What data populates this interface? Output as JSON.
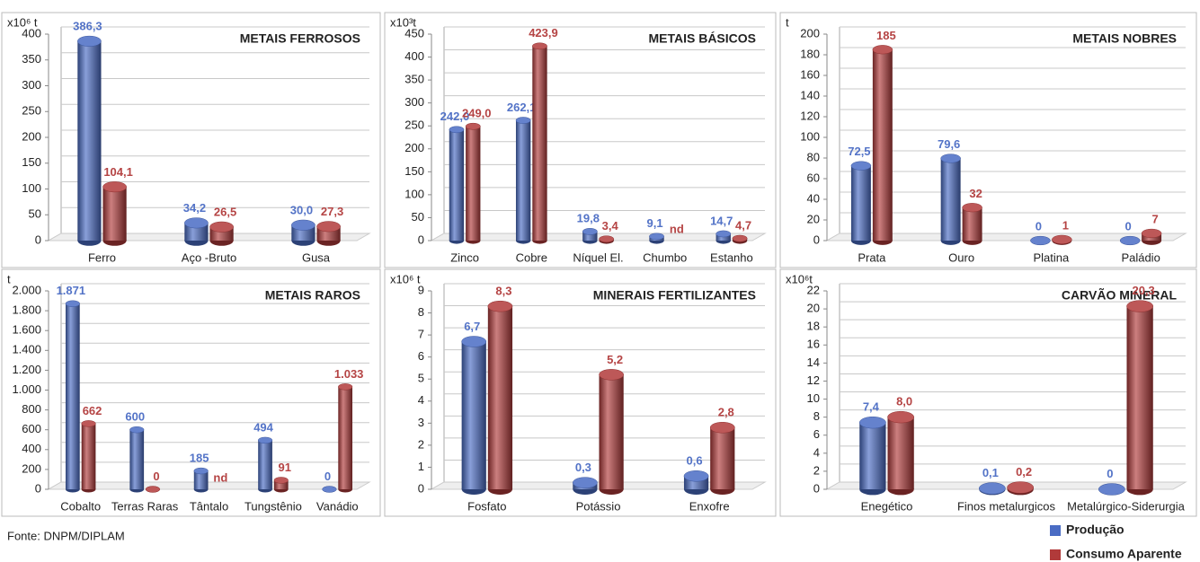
{
  "chart_data": [
    {
      "type": "bar",
      "title": "METAIS FERROSOS",
      "unit": "x10⁶ t",
      "categories": [
        "Ferro",
        "Aço -Bruto",
        "Gusa"
      ],
      "series": [
        {
          "name": "Produção",
          "color": "#4a6cc4",
          "values": [
            386.3,
            34.2,
            30.0
          ],
          "value_labels": [
            "386,3",
            "34,2",
            "30,0"
          ]
        },
        {
          "name": "Consumo Aparente",
          "color": "#b13a3a",
          "values": [
            104.1,
            26.5,
            27.3
          ],
          "value_labels": [
            "104,1",
            "26,5",
            "27,3"
          ]
        }
      ],
      "ylim": [
        0,
        400
      ],
      "yticks": [
        0,
        50,
        100,
        150,
        200,
        250,
        300,
        350,
        400
      ],
      "grid": true
    },
    {
      "type": "bar",
      "title": "METAIS BÁSICOS",
      "unit": "x10³t",
      "categories": [
        "Zinco",
        "Cobre",
        "Níquel El.",
        "Chumbo",
        "Estanho"
      ],
      "series": [
        {
          "name": "Produção",
          "color": "#4a6cc4",
          "values": [
            242.0,
            262.1,
            19.8,
            9.1,
            14.7
          ],
          "value_labels": [
            "242,0",
            "262,1",
            "19,8",
            "9,1",
            "14,7"
          ]
        },
        {
          "name": "Consumo Aparente",
          "color": "#b13a3a",
          "values": [
            249.0,
            423.9,
            3.4,
            null,
            4.7
          ],
          "value_labels": [
            "249,0",
            "423,9",
            "3,4",
            "nd",
            "4,7"
          ]
        }
      ],
      "ylim": [
        0,
        450
      ],
      "yticks": [
        0,
        50,
        100,
        150,
        200,
        250,
        300,
        350,
        400,
        450
      ],
      "grid": true
    },
    {
      "type": "bar",
      "title": "METAIS NOBRES",
      "unit": "t",
      "categories": [
        "Prata",
        "Ouro",
        "Platina",
        "Paládio"
      ],
      "series": [
        {
          "name": "Produção",
          "color": "#4a6cc4",
          "values": [
            72.5,
            79.6,
            0,
            0
          ],
          "value_labels": [
            "72,5",
            "79,6",
            "0",
            "0"
          ]
        },
        {
          "name": "Consumo Aparente",
          "color": "#b13a3a",
          "values": [
            185,
            32,
            1,
            7
          ],
          "value_labels": [
            "185",
            "32",
            "1",
            "7"
          ]
        }
      ],
      "ylim": [
        0,
        200
      ],
      "yticks": [
        0,
        20,
        40,
        60,
        80,
        100,
        120,
        140,
        160,
        180,
        200
      ],
      "grid": true
    },
    {
      "type": "bar",
      "title": "METAIS RAROS",
      "unit": "t",
      "categories": [
        "Cobalto",
        "Terras Raras",
        "Tântalo",
        "Tungstênio",
        "Vanádio"
      ],
      "series": [
        {
          "name": "Produção",
          "color": "#4a6cc4",
          "values": [
            1871,
            600,
            185,
            494,
            0
          ],
          "value_labels": [
            "1.871",
            "600",
            "185",
            "494",
            "0"
          ]
        },
        {
          "name": "Consumo Aparente",
          "color": "#b13a3a",
          "values": [
            662,
            0,
            null,
            91,
            1033
          ],
          "value_labels": [
            "662",
            "0",
            "nd",
            "91",
            "1.033"
          ]
        }
      ],
      "ylim": [
        0,
        2000
      ],
      "yticks": [
        0,
        200,
        400,
        600,
        800,
        {
          "value": 1000,
          "label": "1.000"
        },
        {
          "value": 1200,
          "label": "1.200"
        },
        {
          "value": 1400,
          "label": "1.400"
        },
        {
          "value": 1600,
          "label": "1.600"
        },
        {
          "value": 1800,
          "label": "1.800"
        },
        {
          "value": 2000,
          "label": "2.000"
        }
      ],
      "grid": true
    },
    {
      "type": "bar",
      "title": "MINERAIS FERTILIZANTES",
      "unit": "x10⁶ t",
      "categories": [
        "Fosfato",
        "Potássio",
        "Enxofre"
      ],
      "series": [
        {
          "name": "Produção",
          "color": "#4a6cc4",
          "values": [
            6.7,
            0.3,
            0.6
          ],
          "value_labels": [
            "6,7",
            "0,3",
            "0,6"
          ]
        },
        {
          "name": "Consumo Aparente",
          "color": "#b13a3a",
          "values": [
            8.3,
            5.2,
            2.8
          ],
          "value_labels": [
            "8,3",
            "5,2",
            "2,8"
          ]
        }
      ],
      "ylim": [
        0,
        9
      ],
      "yticks": [
        0,
        1,
        2,
        3,
        4,
        5,
        6,
        7,
        8,
        9
      ],
      "grid": true
    },
    {
      "type": "bar",
      "title": "CARVÃO MINERAL",
      "unit": "x10⁶t",
      "categories": [
        "Enegético",
        "Finos metalurgicos",
        "Metalúrgico-Siderurgia"
      ],
      "series": [
        {
          "name": "Produção",
          "color": "#4a6cc4",
          "values": [
            7.4,
            0.1,
            0
          ],
          "value_labels": [
            "7,4",
            "0,1",
            "0"
          ]
        },
        {
          "name": "Consumo Aparente",
          "color": "#b13a3a",
          "values": [
            8.0,
            0.2,
            20.3
          ],
          "value_labels": [
            "8,0",
            "0,2",
            "20,3"
          ]
        }
      ],
      "ylim": [
        0,
        22
      ],
      "yticks": [
        0,
        2,
        4,
        6,
        8,
        10,
        12,
        14,
        16,
        18,
        20,
        22
      ],
      "grid": true
    }
  ],
  "source": "Fonte: DNPM/DIPLAM"
}
